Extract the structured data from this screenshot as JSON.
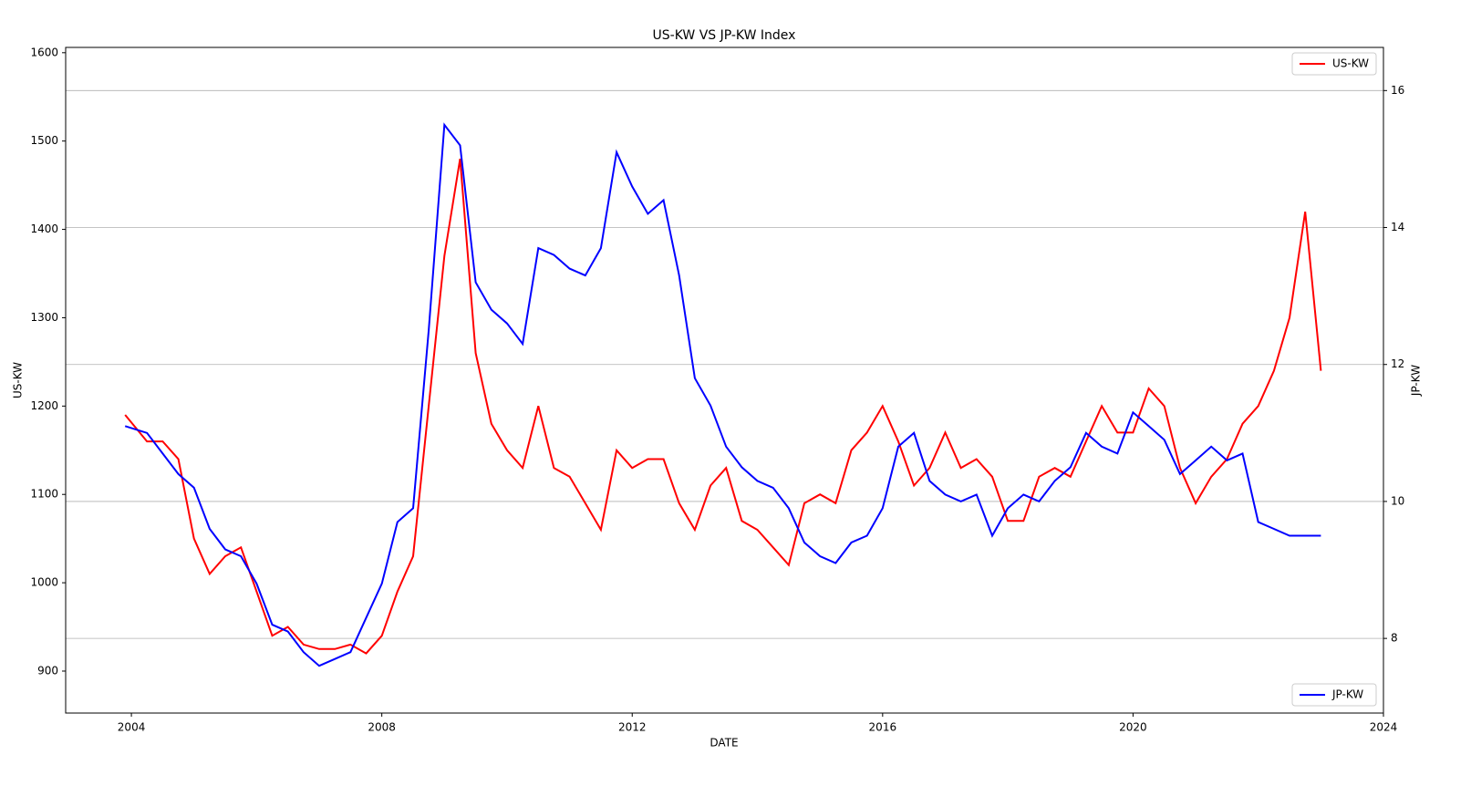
{
  "chart_data": {
    "type": "line",
    "title": "US-KW VS JP-KW Index",
    "xlabel": "DATE",
    "ylabel": "US-KW",
    "y2label": "JP-KW",
    "x": [
      2003.9,
      2004.25,
      2004.5,
      2004.75,
      2005,
      2005.25,
      2005.5,
      2005.75,
      2006,
      2006.25,
      2006.5,
      2006.75,
      2007,
      2007.25,
      2007.5,
      2007.75,
      2008,
      2008.25,
      2008.5,
      2008.75,
      2009,
      2009.25,
      2009.5,
      2009.75,
      2010,
      2010.25,
      2010.5,
      2010.75,
      2011,
      2011.25,
      2011.5,
      2011.75,
      2012,
      2012.25,
      2012.5,
      2012.75,
      2013,
      2013.25,
      2013.5,
      2013.75,
      2014,
      2014.25,
      2014.5,
      2014.75,
      2015,
      2015.25,
      2015.5,
      2015.75,
      2016,
      2016.25,
      2016.5,
      2016.75,
      2017,
      2017.25,
      2017.5,
      2017.75,
      2018,
      2018.25,
      2018.5,
      2018.75,
      2019,
      2019.25,
      2019.5,
      2019.75,
      2020,
      2020.25,
      2020.5,
      2020.75,
      2021,
      2021.25,
      2021.5,
      2021.75,
      2022,
      2022.25,
      2022.5,
      2022.75,
      2023
    ],
    "series": [
      {
        "name": "US-KW",
        "color": "#ff0000",
        "axis": "y",
        "legend": "upper right",
        "values": [
          1190,
          1160,
          1160,
          1140,
          1050,
          1010,
          1030,
          1040,
          990,
          940,
          950,
          930,
          925,
          925,
          930,
          920,
          940,
          990,
          1030,
          1200,
          1370,
          1480,
          1260,
          1180,
          1150,
          1130,
          1200,
          1130,
          1120,
          1090,
          1060,
          1150,
          1130,
          1140,
          1140,
          1090,
          1060,
          1110,
          1130,
          1070,
          1060,
          1040,
          1020,
          1090,
          1100,
          1090,
          1150,
          1170,
          1200,
          1160,
          1110,
          1130,
          1170,
          1130,
          1140,
          1120,
          1070,
          1070,
          1120,
          1130,
          1120,
          1160,
          1200,
          1170,
          1170,
          1220,
          1200,
          1130,
          1090,
          1120,
          1140,
          1180,
          1200,
          1240,
          1300,
          1420,
          1240
        ]
      },
      {
        "name": "JP-KW",
        "color": "#0000ff",
        "axis": "y2",
        "legend": "lower right",
        "values": [
          11.1,
          11.0,
          10.7,
          10.4,
          10.2,
          9.6,
          9.3,
          9.2,
          8.8,
          8.2,
          8.1,
          7.8,
          7.6,
          7.7,
          7.8,
          8.3,
          8.8,
          9.7,
          9.9,
          12.5,
          15.5,
          15.2,
          13.2,
          12.8,
          12.6,
          12.3,
          13.7,
          13.6,
          13.4,
          13.3,
          13.7,
          15.1,
          14.6,
          14.2,
          14.4,
          13.3,
          11.8,
          11.4,
          10.8,
          10.5,
          10.3,
          10.2,
          9.9,
          9.4,
          9.2,
          9.1,
          9.4,
          9.5,
          9.9,
          10.8,
          11.0,
          10.3,
          10.1,
          10.0,
          10.1,
          9.5,
          9.9,
          10.1,
          10.0,
          10.3,
          10.5,
          11.0,
          10.8,
          10.7,
          11.3,
          11.1,
          10.9,
          10.4,
          10.6,
          10.8,
          10.6,
          10.7,
          9.7,
          9.6,
          9.5,
          9.5,
          9.5
        ]
      }
    ],
    "xlim": [
      2002.95,
      2024.0
    ],
    "xticks": [
      2004,
      2008,
      2012,
      2016,
      2020,
      2024
    ],
    "ylim": [
      852.5,
      1606
    ],
    "yticks": [
      900,
      1000,
      1100,
      1200,
      1300,
      1400,
      1500,
      1600
    ],
    "y2lim": [
      6.91,
      16.63
    ],
    "y2ticks": [
      8,
      10,
      12,
      14,
      16
    ],
    "grid": "y2"
  }
}
